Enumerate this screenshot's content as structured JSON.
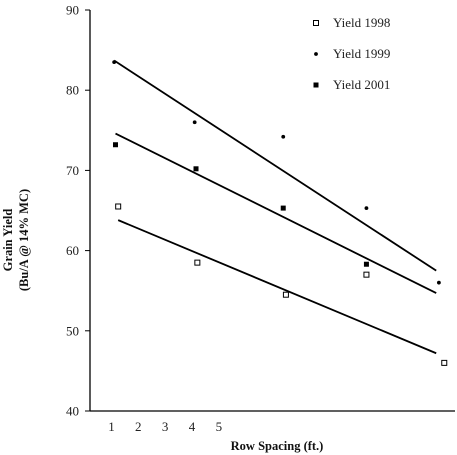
{
  "chart_data": {
    "type": "scatter",
    "xlabel": "Row Spacing (ft.)",
    "ylabel_line1": "Grain Yield",
    "ylabel_line2": "(Bu/A @ 14% MC)",
    "ylim": [
      40,
      90
    ],
    "y_ticks": [
      40,
      50,
      60,
      70,
      80,
      90
    ],
    "x_ticks": [
      1,
      2,
      3,
      4,
      5
    ],
    "xlim": [
      0.2,
      13.8
    ],
    "grid": false,
    "legend_position": "top-right",
    "series": [
      {
        "name": "Yield 1998",
        "marker": "hollow-square",
        "x": [
          1.25,
          4.2,
          7.5,
          10.5,
          13.4
        ],
        "y": [
          65.5,
          58.5,
          54.5,
          57.0,
          46.0
        ],
        "trend": {
          "x": [
            1.25,
            13.1
          ],
          "y": [
            63.8,
            47.2
          ]
        }
      },
      {
        "name": "Yield 1999",
        "marker": "small-dot",
        "x": [
          1.1,
          4.1,
          7.4,
          10.5,
          13.2
        ],
        "y": [
          83.5,
          76.0,
          74.2,
          65.3,
          56.0
        ],
        "trend": {
          "x": [
            1.1,
            13.1
          ],
          "y": [
            83.7,
            57.5
          ]
        }
      },
      {
        "name": "Yield 2001",
        "marker": "filled-square",
        "x": [
          1.15,
          4.15,
          7.4,
          10.5
        ],
        "y": [
          73.2,
          70.2,
          65.3,
          58.3
        ],
        "trend": {
          "x": [
            1.15,
            13.1
          ],
          "y": [
            74.6,
            54.7
          ]
        }
      }
    ]
  }
}
